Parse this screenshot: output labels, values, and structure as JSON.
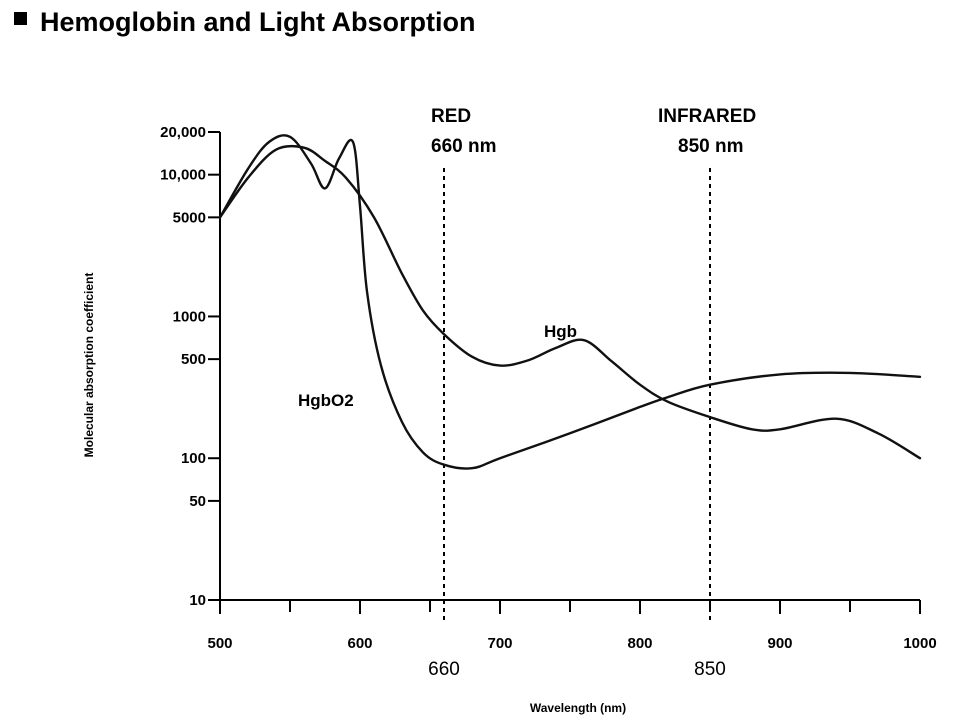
{
  "chart_data": {
    "type": "line",
    "title": "Hemoglobin and Light Absorption",
    "xlabel": "Wavelength (nm)",
    "ylabel": "Molecular absorption coefficient",
    "y_scale": "log",
    "xlim": [
      500,
      1000
    ],
    "ylim": [
      10,
      20000
    ],
    "x_ticks": [
      500,
      600,
      700,
      800,
      900,
      1000
    ],
    "x_tick_labels": [
      "500",
      "600",
      "700",
      "800",
      "900",
      "1000"
    ],
    "y_ticks": [
      10,
      50,
      100,
      500,
      1000,
      5000,
      10000,
      20000
    ],
    "y_tick_labels": [
      "10",
      "50",
      "100",
      "500",
      "1000",
      "5000",
      "10,000",
      "20,000"
    ],
    "grid": false,
    "series": [
      {
        "name": "Hgb",
        "x": [
          500,
          520,
          540,
          560,
          575,
          590,
          610,
          630,
          645,
          660,
          680,
          700,
          720,
          740,
          760,
          780,
          800,
          820,
          850,
          880,
          900,
          940,
          970,
          1000
        ],
        "y": [
          5000,
          9500,
          15000,
          15500,
          12500,
          9500,
          5000,
          2000,
          1100,
          750,
          520,
          450,
          490,
          600,
          680,
          480,
          330,
          250,
          195,
          160,
          160,
          190,
          150,
          100
        ]
      },
      {
        "name": "HgbO2",
        "x": [
          500,
          520,
          535,
          550,
          565,
          575,
          585,
          595,
          600,
          605,
          615,
          630,
          645,
          660,
          680,
          700,
          750,
          800,
          820,
          850,
          900,
          950,
          1000
        ],
        "y": [
          5000,
          11000,
          17000,
          18500,
          12000,
          8000,
          13000,
          17000,
          6000,
          1500,
          450,
          180,
          110,
          90,
          85,
          100,
          150,
          230,
          270,
          330,
          390,
          400,
          375
        ]
      }
    ],
    "series_labels": [
      "Hgb",
      "HgbO2"
    ],
    "vertical_lines": [
      {
        "x": 660,
        "label_line1": "RED",
        "label_line2": "660 nm",
        "marker": "660"
      },
      {
        "x": 850,
        "label_line1": "INFRARED",
        "label_line2": "850 nm",
        "marker": "850"
      }
    ]
  }
}
